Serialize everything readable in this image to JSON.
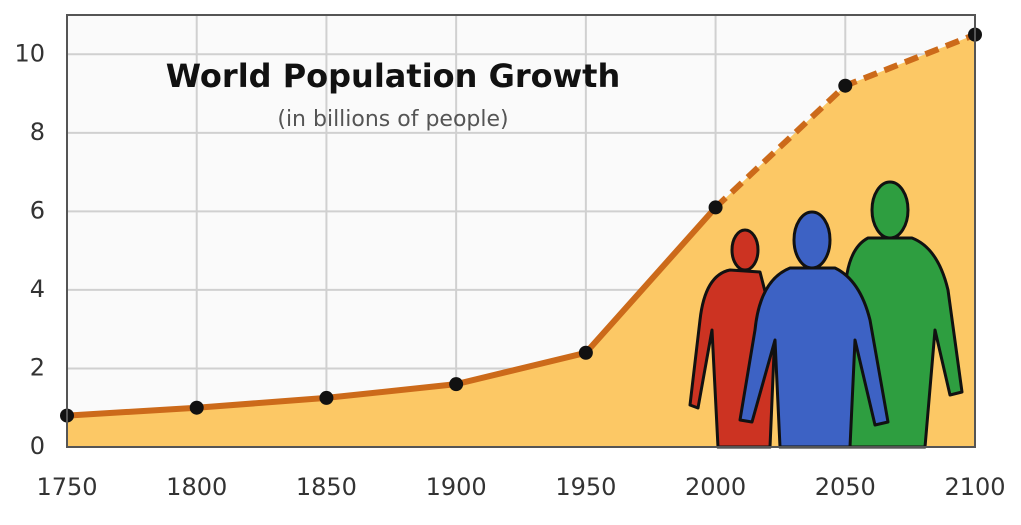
{
  "chart_data": {
    "type": "area",
    "title": "World Population Growth",
    "subtitle": "(in billions of people)",
    "x": [
      1750,
      1800,
      1850,
      1900,
      1950,
      2000,
      2050,
      2100
    ],
    "values": [
      0.8,
      1.0,
      1.25,
      1.6,
      2.4,
      6.1,
      9.2,
      10.5
    ],
    "dashed_after": 2000,
    "xlim": [
      1750,
      2100
    ],
    "xticks": [
      1750,
      1800,
      1850,
      1900,
      1950,
      2000,
      2050,
      2100
    ],
    "ylim": [
      0,
      11
    ],
    "yticks": [
      0,
      2,
      4,
      6,
      8,
      10
    ],
    "grid": true,
    "fill_color": "#fcc865",
    "line_color": "#cc6a1a",
    "point_color": "#111111"
  }
}
